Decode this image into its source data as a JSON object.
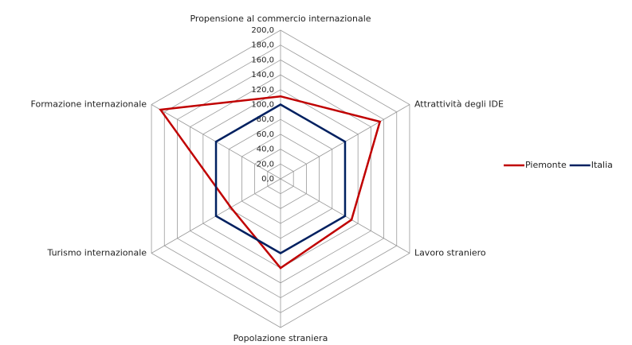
{
  "chart_data": {
    "type": "radar",
    "categories": [
      "Propensione al commercio internazionale",
      "Attrattività degli IDE",
      "Lavoro straniero",
      "Popolazione straniera",
      "Turismo internazionale",
      "Formazione internazionale"
    ],
    "series": [
      {
        "name": "Piemonte",
        "color": "#c00000",
        "values": [
          111,
          154,
          110,
          120,
          77,
          186
        ]
      },
      {
        "name": "Italia",
        "color": "#002060",
        "values": [
          100,
          100,
          100,
          100,
          100,
          100
        ]
      }
    ],
    "ylim": [
      0,
      200
    ],
    "yticks": [
      {
        "value": 0,
        "label": "0,0"
      },
      {
        "value": 20,
        "label": "20,0"
      },
      {
        "value": 40,
        "label": "40,0"
      },
      {
        "value": 60,
        "label": "60,0"
      },
      {
        "value": 80,
        "label": "80,0"
      },
      {
        "value": 100,
        "label": "100,0"
      },
      {
        "value": 120,
        "label": "120,0"
      },
      {
        "value": 140,
        "label": "140,0"
      },
      {
        "value": 160,
        "label": "160,0"
      },
      {
        "value": 180,
        "label": "180,0"
      },
      {
        "value": 200,
        "label": "200,0"
      }
    ],
    "grid": true,
    "legend": "right"
  }
}
